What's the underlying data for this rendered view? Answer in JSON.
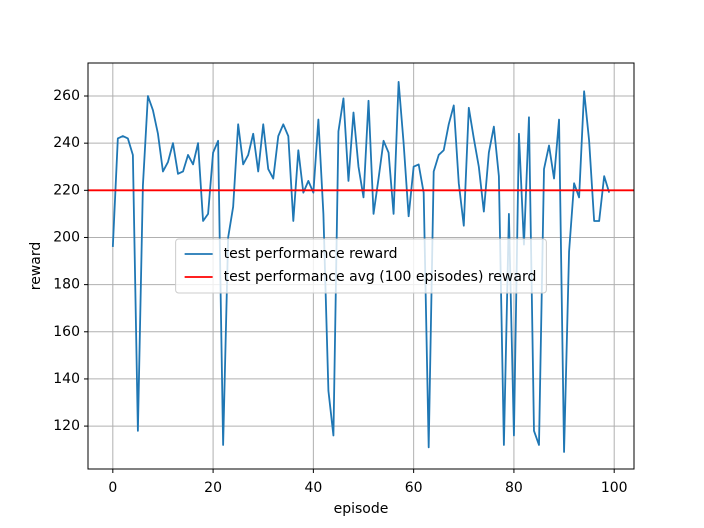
{
  "chart_data": {
    "type": "line",
    "x_label": "episode",
    "y_label": "reward",
    "x": [
      0,
      1,
      2,
      3,
      4,
      5,
      6,
      7,
      8,
      9,
      10,
      11,
      12,
      13,
      14,
      15,
      16,
      17,
      18,
      19,
      20,
      21,
      22,
      23,
      24,
      25,
      26,
      27,
      28,
      29,
      30,
      31,
      32,
      33,
      34,
      35,
      36,
      37,
      38,
      39,
      40,
      41,
      42,
      43,
      44,
      45,
      46,
      47,
      48,
      49,
      50,
      51,
      52,
      53,
      54,
      55,
      56,
      57,
      58,
      59,
      60,
      61,
      62,
      63,
      64,
      65,
      66,
      67,
      68,
      69,
      70,
      71,
      72,
      73,
      74,
      75,
      76,
      77,
      78,
      79,
      80,
      81,
      82,
      83,
      84,
      85,
      86,
      87,
      88,
      89,
      90,
      91,
      92,
      93,
      94,
      95,
      96,
      97,
      98,
      99
    ],
    "series": [
      {
        "name": "test performance reward",
        "color": "#1f77b4",
        "values": [
          196,
          242,
          243,
          242,
          235,
          118,
          222,
          260,
          254,
          244,
          228,
          232,
          240,
          227,
          228,
          235,
          231,
          240,
          207,
          210,
          236,
          241,
          112,
          200,
          213,
          248,
          231,
          235,
          244,
          228,
          248,
          229,
          225,
          243,
          248,
          243,
          207,
          237,
          219,
          224,
          219,
          250,
          210,
          135,
          116,
          245,
          259,
          224,
          253,
          230,
          217,
          258,
          210,
          225,
          241,
          236,
          210,
          266,
          240,
          209,
          230,
          231,
          219,
          111,
          228,
          235,
          237,
          248,
          256,
          223,
          205,
          255,
          242,
          230,
          211,
          236,
          247,
          226,
          112,
          210,
          116,
          244,
          197,
          251,
          118,
          112,
          229,
          239,
          225,
          250,
          109,
          194,
          223,
          217,
          262,
          241,
          207,
          207,
          226,
          219
        ]
      }
    ],
    "reference_lines": [
      {
        "name": "test performance avg (100 episodes) reward",
        "color": "#ff0000",
        "value": 220
      }
    ],
    "xlim": [
      -4.95,
      103.95
    ],
    "xticks": [
      0,
      20,
      40,
      60,
      80,
      100
    ],
    "ylim": [
      101.8,
      274
    ],
    "yticks": [
      120,
      140,
      160,
      180,
      200,
      220,
      240,
      260
    ],
    "grid": true,
    "legend": "center"
  }
}
